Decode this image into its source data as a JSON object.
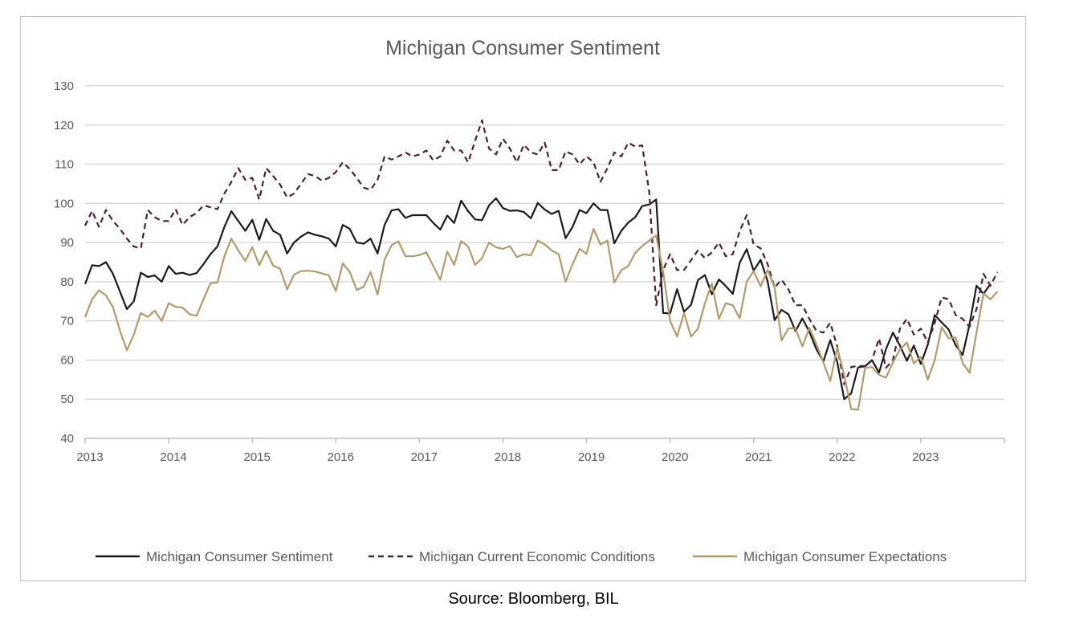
{
  "source": "Source: Bloomberg, BIL",
  "chart_data": {
    "type": "line",
    "title": "Michigan Consumer Sentiment",
    "xlabel": "",
    "ylabel": "",
    "ylim": [
      40,
      130
    ],
    "yticks": [
      40,
      50,
      60,
      70,
      80,
      90,
      100,
      110,
      120,
      130
    ],
    "xticks": [
      "2013",
      "2014",
      "2015",
      "2016",
      "2017",
      "2018",
      "2019",
      "2020",
      "2021",
      "2022",
      "2023"
    ],
    "grid": "horizontal",
    "legend_position": "bottom",
    "x_start": "2013-01",
    "x_frequency": "monthly",
    "series": [
      {
        "name": "Michigan Consumer Sentiment",
        "color": "#1a1a1a",
        "dash": "solid",
        "values": [
          79.4,
          84.2,
          84.0,
          85.0,
          82.0,
          77.5,
          73.0,
          75.0,
          82.3,
          81.2,
          81.6,
          80.0,
          84.0,
          82.0,
          82.3,
          81.7,
          82.2,
          84.5,
          87.0,
          89.0,
          94.0,
          98.0,
          95.5,
          93.0,
          95.8,
          90.7,
          96.0,
          93.0,
          92.0,
          87.2,
          90.0,
          91.5,
          92.6,
          92.0,
          91.6,
          91.0,
          89.0,
          94.5,
          93.5,
          90.0,
          89.7,
          91.0,
          87.2,
          94.5,
          98.2,
          98.5,
          96.3,
          97.0,
          97.0,
          97.0,
          95.0,
          93.3,
          96.9,
          95.0,
          100.7,
          98.0,
          95.9,
          95.7,
          99.5,
          101.3,
          98.8,
          98.1,
          98.2,
          97.8,
          96.2,
          100.1,
          98.4,
          97.3,
          98.1,
          91.1,
          94.0,
          98.3,
          97.5,
          100.0,
          98.3,
          98.3,
          89.8,
          93.0,
          95.1,
          96.5,
          99.3,
          99.7,
          101.0,
          72.0,
          71.9,
          78.1,
          72.3,
          74.1,
          80.4,
          81.7,
          76.8,
          80.6,
          78.9,
          76.9,
          84.9,
          88.3,
          82.8,
          85.6,
          80.1,
          70.2,
          72.8,
          71.7,
          67.4,
          70.6,
          67.2,
          62.8,
          59.6,
          65.1,
          59.5,
          50.0,
          51.5,
          58.1,
          58.4,
          59.9,
          56.8,
          62.8,
          67.0,
          63.7,
          59.8,
          63.7,
          59.0,
          63.9,
          71.5,
          69.6,
          67.8,
          63.8,
          61.3,
          69.1,
          79.0,
          76.9,
          79.4
        ]
      },
      {
        "name": "Michigan Current Economic Conditions",
        "color": "#4a2033",
        "dash": "dashed",
        "values": [
          94.3,
          98.1,
          94.0,
          98.3,
          95.5,
          93.5,
          91.0,
          89.0,
          88.5,
          98.3,
          96.5,
          95.5,
          95.5,
          98.5,
          94.5,
          96.5,
          97.5,
          99.5,
          99.0,
          98.5,
          102.5,
          105.5,
          109.0,
          106.0,
          106.5,
          101.0,
          109.0,
          107.0,
          104.8,
          101.5,
          102.5,
          105.0,
          107.5,
          107.0,
          105.8,
          106.5,
          108.0,
          110.5,
          108.8,
          106.5,
          104.0,
          103.5,
          106.0,
          112.0,
          111.2,
          112.0,
          113.0,
          112.0,
          112.5,
          113.5,
          111.0,
          112.0,
          116.0,
          113.5,
          113.5,
          110.5,
          116.0,
          121.2,
          114.0,
          112.5,
          116.5,
          114.0,
          110.5,
          115.0,
          113.0,
          112.5,
          115.5,
          108.5,
          108.5,
          113.3,
          112.5,
          110.0,
          112.0,
          110.5,
          105.5,
          109.0,
          113.0,
          112.0,
          115.5,
          114.5,
          114.8,
          103.0,
          74.0,
          83.0,
          87.0,
          83.0,
          83.0,
          85.5,
          88.0,
          86.0,
          87.5,
          90.0,
          86.5,
          87.0,
          93.0,
          97.0,
          89.5,
          88.5,
          84.5,
          78.5,
          80.5,
          78.0,
          74.0,
          74.0,
          70.5,
          67.5,
          67.0,
          69.5,
          63.5,
          53.8,
          58.2,
          58.5,
          58.5,
          60.0,
          65.5,
          58.0,
          60.0,
          68.0,
          70.5,
          66.5,
          68.0,
          64.5,
          69.5,
          76.0,
          75.5,
          71.5,
          70.5,
          68.5,
          73.0,
          82.0,
          79.0,
          82.5
        ]
      },
      {
        "name": "Michigan Consumer Expectations",
        "color": "#b49a6b",
        "dash": "solid",
        "values": [
          71.0,
          75.5,
          77.8,
          76.5,
          73.5,
          67.5,
          62.5,
          66.5,
          72.0,
          71.0,
          72.6,
          70.0,
          74.5,
          73.6,
          73.4,
          71.7,
          71.3,
          75.5,
          79.6,
          79.8,
          86.5,
          91.0,
          88.0,
          85.3,
          88.8,
          84.2,
          87.9,
          84.1,
          83.3,
          78.0,
          81.8,
          82.7,
          82.8,
          82.6,
          82.1,
          81.6,
          77.6,
          84.7,
          82.5,
          77.9,
          78.7,
          82.5,
          76.7,
          85.6,
          89.3,
          90.3,
          86.5,
          86.5,
          86.8,
          87.5,
          84.0,
          80.5,
          87.7,
          84.3,
          90.4,
          89.0,
          84.3,
          86.0,
          90.0,
          88.8,
          88.4,
          89.1,
          86.3,
          87.0,
          86.7,
          90.5,
          89.5,
          88.0,
          87.0,
          80.0,
          84.5,
          88.4,
          87.1,
          93.5,
          89.5,
          90.5,
          79.8,
          83.0,
          84.0,
          87.4,
          89.1,
          90.5,
          91.8,
          82.5,
          70.0,
          66.0,
          72.0,
          66.0,
          68.0,
          74.5,
          79.5,
          70.5,
          74.5,
          74.0,
          70.7,
          80.0,
          82.7,
          78.8,
          83.0,
          78.5,
          65.0,
          68.1,
          68.0,
          63.5,
          68.2,
          64.1,
          59.4,
          54.6,
          63.2,
          56.1,
          47.5,
          47.3,
          58.0,
          58.2,
          56.2,
          55.5,
          59.4,
          62.7,
          64.5,
          59.1,
          60.8,
          55.0,
          60.0,
          68.4,
          65.5,
          65.8,
          59.3,
          56.7,
          67.0,
          77.0,
          75.5,
          77.5
        ]
      }
    ]
  }
}
